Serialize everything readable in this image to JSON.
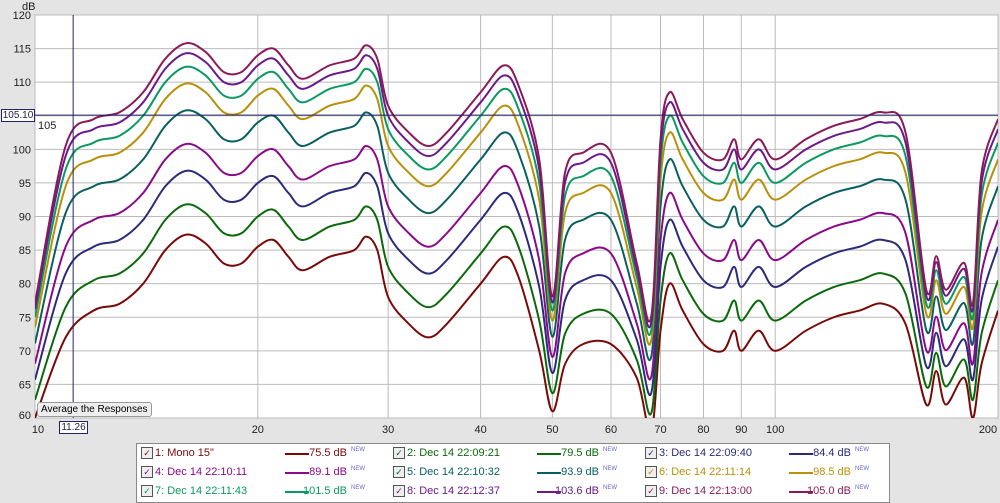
{
  "chart_data": {
    "type": "line",
    "ylabel": "dB",
    "xscale": "log",
    "xlim": [
      10,
      200
    ],
    "ylim": [
      60,
      120
    ],
    "yticks": [
      60,
      65,
      70,
      75,
      80,
      85,
      90,
      95,
      100,
      105,
      110,
      115,
      120
    ],
    "xticks": [
      10,
      20,
      30,
      40,
      50,
      60,
      70,
      80,
      90,
      100,
      200
    ],
    "grid": true,
    "cursor": {
      "x": "11.26",
      "y": "105.10"
    },
    "button": "Average the Responses",
    "x": [
      10,
      11,
      12,
      13,
      14,
      15,
      16,
      17,
      18,
      19,
      20,
      21,
      22,
      23,
      25,
      27,
      28,
      29,
      30,
      32,
      34,
      36,
      40,
      43,
      45,
      48,
      50,
      52,
      55,
      60,
      65,
      68,
      70,
      72,
      75,
      80,
      85,
      88,
      90,
      95,
      100,
      110,
      120,
      130,
      140,
      150,
      160,
      165,
      170,
      180,
      185,
      190,
      200
    ],
    "base_values": [
      60,
      72,
      76,
      77,
      80,
      85,
      87.3,
      86,
      83,
      83,
      85.5,
      86.5,
      84,
      82,
      84,
      85,
      87,
      85,
      78,
      74,
      72,
      74,
      80,
      84,
      81,
      70,
      61,
      68,
      71,
      71,
      66,
      58,
      73,
      80,
      76,
      71,
      70,
      73,
      70,
      73,
      70,
      73,
      75,
      76,
      77,
      74,
      62,
      67,
      62,
      66,
      60,
      68,
      76
    ],
    "series": [
      {
        "name": "1: Mono 15\"",
        "level": "75.5 dB",
        "new": "NEW",
        "color": "#7a0a0a",
        "offset": 0
      },
      {
        "name": "2: Dec 14 22:09:21",
        "level": "79.5 dB",
        "new": "NEW",
        "color": "#0a6a0a",
        "offset": 4.5
      },
      {
        "name": "3: Dec 14 22:09:40",
        "level": "84.4 dB",
        "new": "NEW",
        "color": "#2b2b7a",
        "offset": 9.5
      },
      {
        "name": "4: Dec 14 22:10:11",
        "level": "89.1 dB",
        "new": "NEW",
        "color": "#8a0a8a",
        "offset": 13.5
      },
      {
        "name": "5: Dec 14 22:10:32",
        "level": "93.9 dB",
        "new": "NEW",
        "color": "#0a6060",
        "offset": 18.5
      },
      {
        "name": "6: Dec 14 22:11:14",
        "level": "98.5 dB",
        "new": "NEW",
        "color": "#b8900a",
        "offset": 22.5
      },
      {
        "name": "7: Dec 14 22:11:43",
        "level": "101.5 dB",
        "new": "NEW",
        "color": "#0a9a60",
        "offset": 25
      },
      {
        "name": "8: Dec 14 22:12:37",
        "level": "103.6 dB",
        "new": "NEW",
        "color": "#6a1a8a",
        "offset": 27
      },
      {
        "name": "9: Dec 14 22:13:00",
        "level": "105.0 dB",
        "new": "NEW",
        "color": "#8a1a5a",
        "offset": 28.5
      }
    ]
  }
}
